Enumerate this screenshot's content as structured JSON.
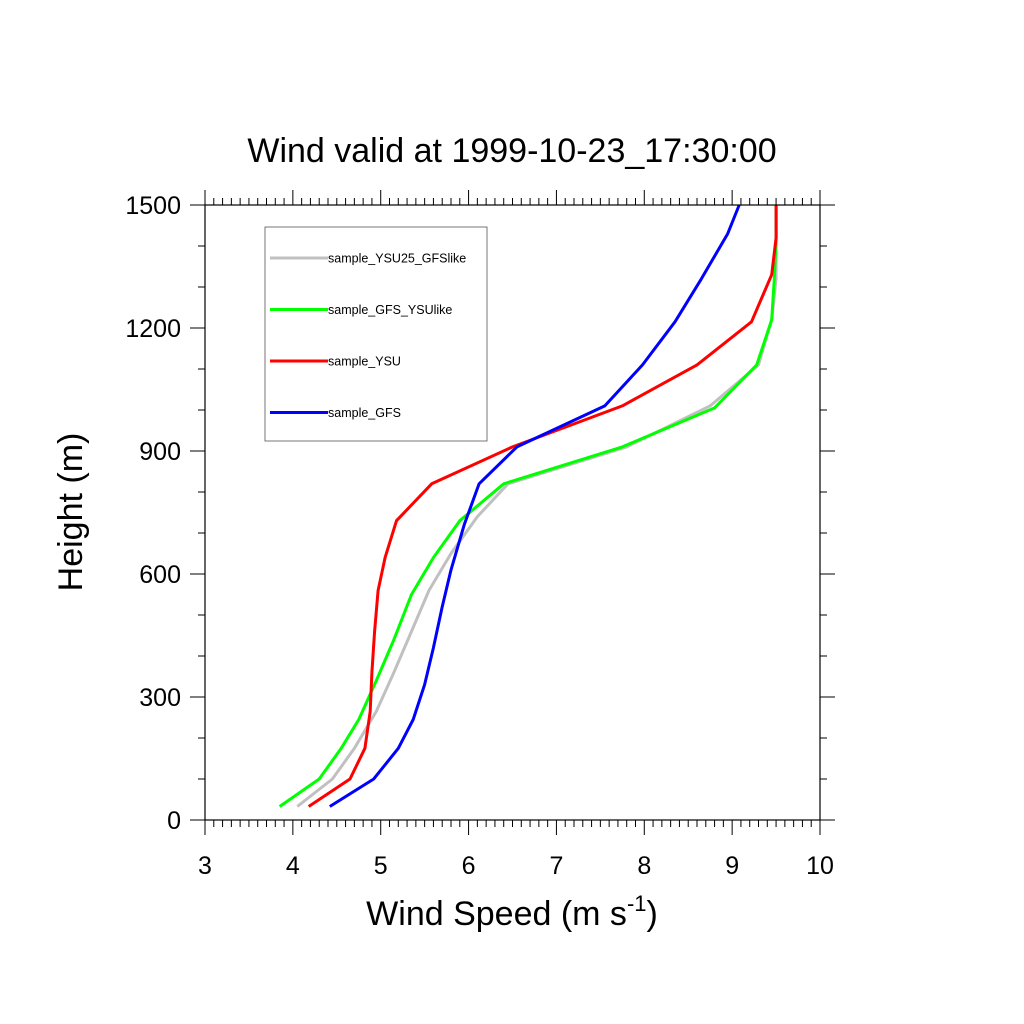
{
  "chart_data": {
    "type": "line",
    "title": "Wind valid at 1999-10-23_17:30:00",
    "xlabel": "Wind Speed (m s",
    "xlabel_sup": "-1",
    "xlabel_end": ")",
    "ylabel": "Height (m)",
    "xlim": [
      3,
      10
    ],
    "ylim": [
      0,
      1500
    ],
    "x_ticks": [
      3,
      4,
      5,
      6,
      7,
      8,
      9,
      10
    ],
    "y_ticks": [
      0,
      300,
      600,
      900,
      1200,
      1500
    ],
    "grid": false,
    "legend_position": "top-left",
    "series": [
      {
        "name": "sample_YSU25_GFSlike",
        "color": "#c0c0c0",
        "points": [
          [
            4.05,
            33
          ],
          [
            4.45,
            100
          ],
          [
            4.7,
            175
          ],
          [
            4.95,
            265
          ],
          [
            5.15,
            360
          ],
          [
            5.35,
            460
          ],
          [
            5.55,
            560
          ],
          [
            5.8,
            650
          ],
          [
            6.1,
            740
          ],
          [
            6.45,
            820
          ],
          [
            7.8,
            910
          ],
          [
            8.75,
            1010
          ],
          [
            9.3,
            1110
          ],
          [
            9.45,
            1220
          ],
          [
            9.5,
            1320
          ],
          [
            9.5,
            1420
          ],
          [
            9.5,
            1500
          ]
        ]
      },
      {
        "name": "sample_GFS_YSUlike",
        "color": "#00ff00",
        "points": [
          [
            3.85,
            33
          ],
          [
            4.3,
            100
          ],
          [
            4.55,
            175
          ],
          [
            4.75,
            245
          ],
          [
            4.95,
            340
          ],
          [
            5.15,
            440
          ],
          [
            5.35,
            550
          ],
          [
            5.6,
            640
          ],
          [
            5.9,
            730
          ],
          [
            6.4,
            820
          ],
          [
            7.75,
            910
          ],
          [
            8.8,
            1005
          ],
          [
            9.28,
            1110
          ],
          [
            9.45,
            1220
          ],
          [
            9.48,
            1320
          ],
          [
            9.5,
            1420
          ],
          [
            9.5,
            1500
          ]
        ]
      },
      {
        "name": "sample_YSU",
        "color": "#ff0000",
        "points": [
          [
            4.18,
            33
          ],
          [
            4.65,
            100
          ],
          [
            4.82,
            175
          ],
          [
            4.88,
            265
          ],
          [
            4.9,
            360
          ],
          [
            4.93,
            460
          ],
          [
            4.97,
            560
          ],
          [
            5.05,
            640
          ],
          [
            5.18,
            730
          ],
          [
            5.58,
            820
          ],
          [
            6.5,
            910
          ],
          [
            7.75,
            1010
          ],
          [
            8.6,
            1110
          ],
          [
            9.22,
            1215
          ],
          [
            9.45,
            1330
          ],
          [
            9.5,
            1420
          ],
          [
            9.5,
            1500
          ]
        ]
      },
      {
        "name": "sample_GFS",
        "color": "#0000ff",
        "points": [
          [
            4.42,
            33
          ],
          [
            4.92,
            100
          ],
          [
            5.2,
            175
          ],
          [
            5.37,
            245
          ],
          [
            5.5,
            330
          ],
          [
            5.6,
            420
          ],
          [
            5.7,
            520
          ],
          [
            5.8,
            610
          ],
          [
            5.95,
            720
          ],
          [
            6.12,
            820
          ],
          [
            6.55,
            910
          ],
          [
            7.55,
            1010
          ],
          [
            7.98,
            1110
          ],
          [
            8.35,
            1215
          ],
          [
            8.65,
            1320
          ],
          [
            8.95,
            1430
          ],
          [
            9.08,
            1500
          ]
        ]
      }
    ]
  }
}
